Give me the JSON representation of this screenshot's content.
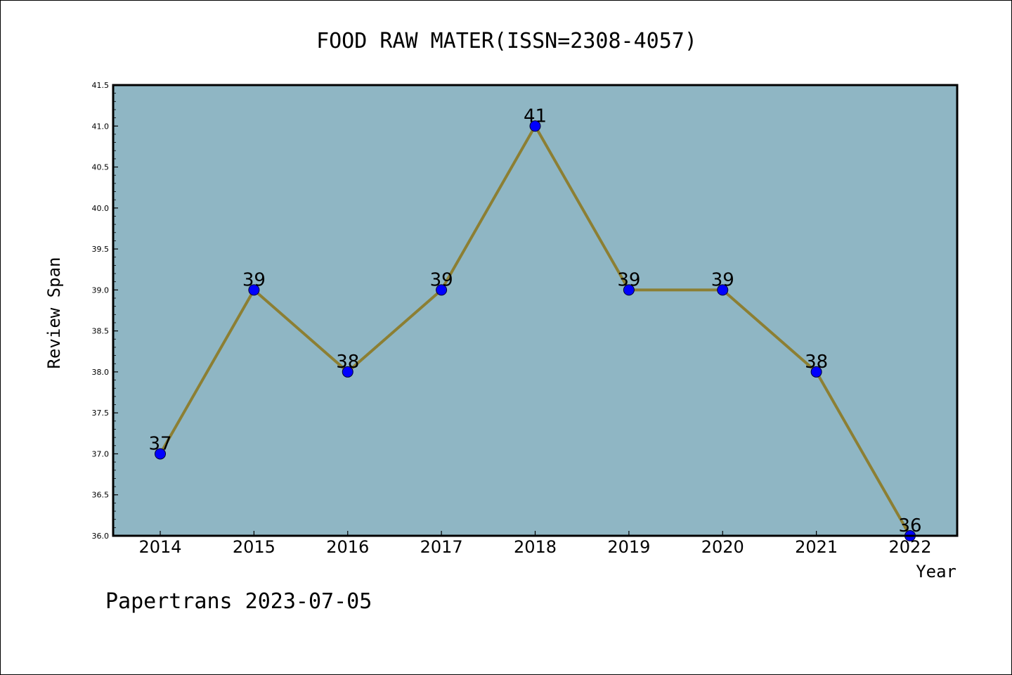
{
  "chart_data": {
    "type": "line",
    "title": "FOOD RAW MATER(ISSN=2308-4057)",
    "xlabel": "Year",
    "ylabel": "Review Span",
    "footer": "Papertrans 2023-07-05",
    "categories": [
      "2014",
      "2015",
      "2016",
      "2017",
      "2018",
      "2019",
      "2020",
      "2021",
      "2022"
    ],
    "series": [
      {
        "values": [
          37,
          39,
          38,
          39,
          41,
          39,
          39,
          38,
          36
        ],
        "labels": [
          "37",
          "39",
          "38",
          "39",
          "41",
          "39",
          "39",
          "38",
          "36"
        ]
      }
    ],
    "ylim": [
      36.0,
      41.5
    ],
    "yticks": [
      "36.0",
      "36.5",
      "37.0",
      "37.5",
      "38.0",
      "38.5",
      "39.0",
      "39.5",
      "40.0",
      "40.5",
      "41.0",
      "41.5"
    ],
    "grid": false,
    "legend": "none",
    "colors": {
      "plot_background": "#8fb6c4",
      "line": "#8c7f33",
      "marker": "#0000ff",
      "axes": "#000000"
    }
  }
}
